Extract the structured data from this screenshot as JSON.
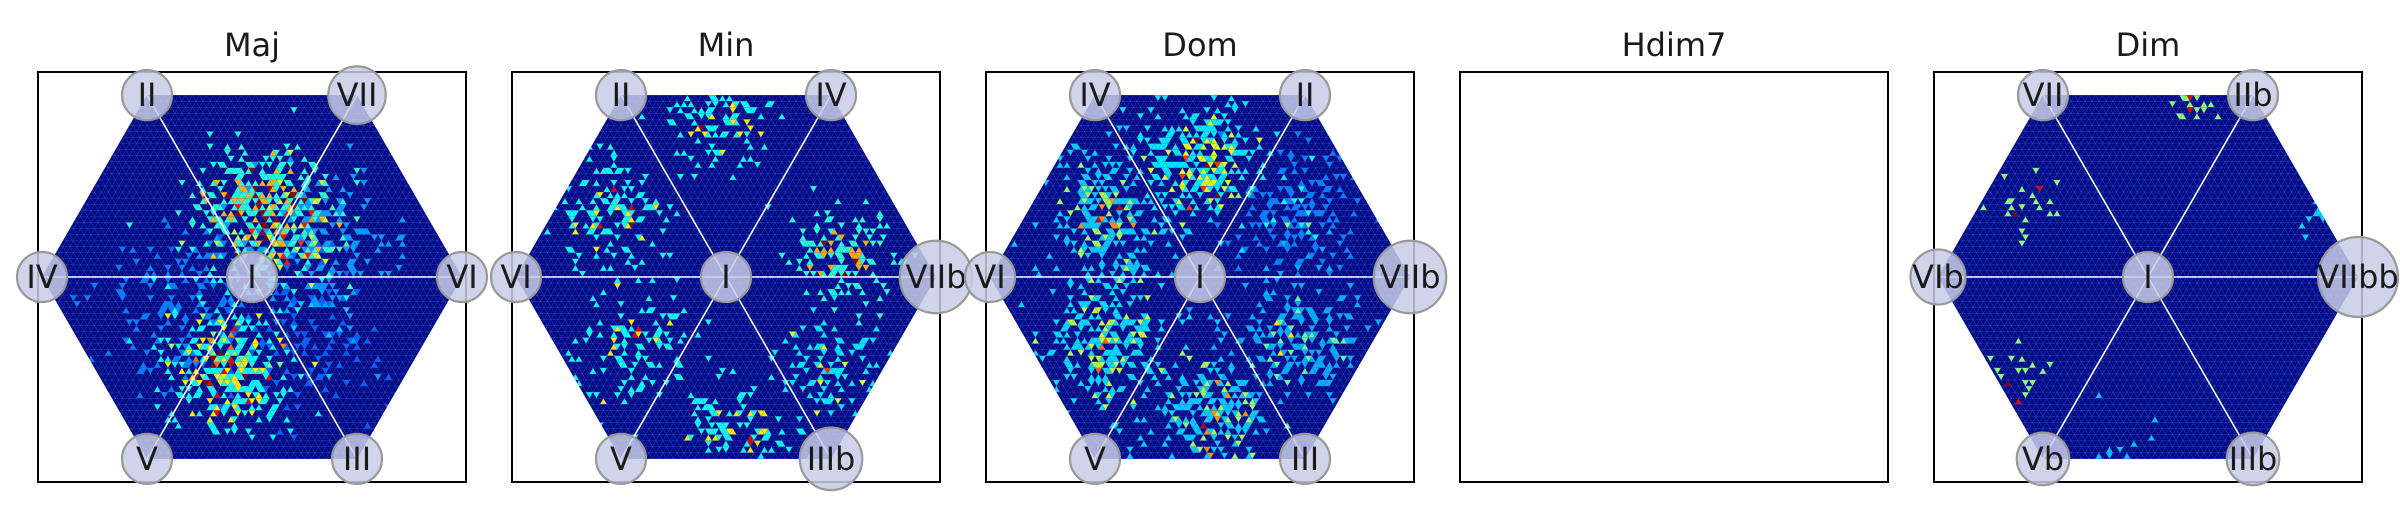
{
  "chart_data": {
    "type": "heatmap",
    "description_kind": "hexagonal tonnetz-style density maps, one per chord quality",
    "colormap": "jet",
    "grid": false,
    "legend": "none",
    "panels": [
      {
        "title": "Maj",
        "empty": false,
        "nodes": [
          {
            "label": "I",
            "pos": "center",
            "size": 1.0
          },
          {
            "label": "II",
            "pos": "top-left",
            "size": 1.0
          },
          {
            "label": "VII",
            "pos": "top-right",
            "size": 1.15
          },
          {
            "label": "IV",
            "pos": "left",
            "size": 1.0
          },
          {
            "label": "VI",
            "pos": "right",
            "size": 1.0
          },
          {
            "label": "V",
            "pos": "bottom-left",
            "size": 1.0
          },
          {
            "label": "III",
            "pos": "bottom-right",
            "size": 1.0
          }
        ],
        "density_clusters": [
          {
            "u": 0.05,
            "v": -0.32,
            "spread": 0.16,
            "weight": 1.0,
            "count": 420
          },
          {
            "u": -0.12,
            "v": 0.45,
            "spread": 0.14,
            "weight": 0.9,
            "count": 340
          },
          {
            "u": 0.3,
            "v": -0.15,
            "spread": 0.18,
            "weight": 0.55,
            "count": 220
          },
          {
            "u": -0.3,
            "v": 0.15,
            "spread": 0.2,
            "weight": 0.45,
            "count": 180
          },
          {
            "u": 0.25,
            "v": 0.3,
            "spread": 0.2,
            "weight": 0.35,
            "count": 140
          }
        ]
      },
      {
        "title": "Min",
        "empty": false,
        "nodes": [
          {
            "label": "I",
            "pos": "center",
            "size": 1.0
          },
          {
            "label": "II",
            "pos": "top-left",
            "size": 1.0
          },
          {
            "label": "IV",
            "pos": "top-right",
            "size": 1.0
          },
          {
            "label": "VI",
            "pos": "left",
            "size": 1.0
          },
          {
            "label": "VIIb",
            "pos": "right",
            "size": 1.45
          },
          {
            "label": "V",
            "pos": "bottom-left",
            "size": 1.0
          },
          {
            "label": "IIIb",
            "pos": "bottom-right",
            "size": 1.25
          }
        ],
        "density_clusters": [
          {
            "u": -0.55,
            "v": -0.3,
            "spread": 0.14,
            "weight": 0.45,
            "count": 150
          },
          {
            "u": 0.55,
            "v": -0.1,
            "spread": 0.12,
            "weight": 0.5,
            "count": 150
          },
          {
            "u": -0.05,
            "v": -0.75,
            "spread": 0.12,
            "weight": 0.45,
            "count": 120
          },
          {
            "u": -0.45,
            "v": 0.35,
            "spread": 0.14,
            "weight": 0.45,
            "count": 120
          },
          {
            "u": 0.05,
            "v": 0.7,
            "spread": 0.12,
            "weight": 0.45,
            "count": 110
          },
          {
            "u": 0.5,
            "v": 0.45,
            "spread": 0.12,
            "weight": 0.4,
            "count": 100
          }
        ]
      },
      {
        "title": "Dom",
        "empty": false,
        "nodes": [
          {
            "label": "I",
            "pos": "center",
            "size": 1.0
          },
          {
            "label": "IV",
            "pos": "top-left",
            "size": 1.0
          },
          {
            "label": "II",
            "pos": "top-right",
            "size": 1.0
          },
          {
            "label": "VI",
            "pos": "left",
            "size": 1.0
          },
          {
            "label": "VIIb",
            "pos": "right",
            "size": 1.45
          },
          {
            "label": "V",
            "pos": "bottom-left",
            "size": 1.0
          },
          {
            "label": "III",
            "pos": "bottom-right",
            "size": 1.0
          }
        ],
        "density_clusters": [
          {
            "u": 0.0,
            "v": -0.55,
            "spread": 0.14,
            "weight": 0.8,
            "count": 300
          },
          {
            "u": -0.45,
            "v": -0.3,
            "spread": 0.16,
            "weight": 0.7,
            "count": 280
          },
          {
            "u": -0.45,
            "v": 0.3,
            "spread": 0.16,
            "weight": 0.75,
            "count": 280
          },
          {
            "u": 0.05,
            "v": 0.65,
            "spread": 0.13,
            "weight": 0.7,
            "count": 240
          },
          {
            "u": 0.45,
            "v": 0.3,
            "spread": 0.15,
            "weight": 0.6,
            "count": 220
          },
          {
            "u": 0.45,
            "v": -0.3,
            "spread": 0.15,
            "weight": 0.45,
            "count": 160
          }
        ]
      },
      {
        "title": "Hdim7",
        "empty": true,
        "nodes": [],
        "density_clusters": []
      },
      {
        "title": "Dim",
        "empty": false,
        "nodes": [
          {
            "label": "I",
            "pos": "center",
            "size": 1.0
          },
          {
            "label": "VII",
            "pos": "top-left",
            "size": 1.0
          },
          {
            "label": "IIb",
            "pos": "top-right",
            "size": 1.0
          },
          {
            "label": "VIb",
            "pos": "left",
            "size": 1.1
          },
          {
            "label": "VIIbb",
            "pos": "right",
            "size": 1.6
          },
          {
            "label": "Vb",
            "pos": "bottom-left",
            "size": 1.05
          },
          {
            "label": "IIIb",
            "pos": "bottom-right",
            "size": 1.05
          }
        ],
        "density_clusters": [
          {
            "u": 0.2,
            "v": -0.85,
            "spread": 0.06,
            "weight": 1.0,
            "count": 25
          },
          {
            "u": -0.6,
            "v": -0.35,
            "spread": 0.08,
            "weight": 1.0,
            "count": 25
          },
          {
            "u": -0.6,
            "v": 0.45,
            "spread": 0.08,
            "weight": 1.0,
            "count": 20
          },
          {
            "u": 0.8,
            "v": -0.3,
            "spread": 0.06,
            "weight": 0.55,
            "count": 14
          },
          {
            "u": -0.1,
            "v": 0.85,
            "spread": 0.1,
            "weight": 0.5,
            "count": 14
          }
        ]
      }
    ],
    "colors": {
      "background_cell": "#000b8a",
      "mesh_line": "#5a6cc0",
      "node_fill": "#c8cce6",
      "node_stroke": "#999999",
      "axis_line": "#ffffff",
      "frame": "#000000"
    }
  }
}
